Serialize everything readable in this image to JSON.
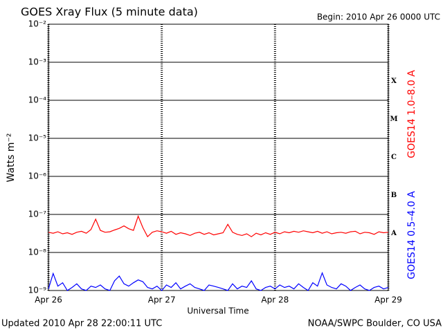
{
  "chart_data": {
    "type": "line",
    "title": "GOES Xray Flux (5 minute data)",
    "subtitle": "Begin:  2010 Apr 26 0000 UTC",
    "x_label": "Universal Time",
    "y_label": "Watts m⁻²",
    "footer_left": "Updated 2010 Apr 28 22:00:11 UTC",
    "footer_right": "NOAA/SWPC Boulder, CO USA",
    "flare_classes": [
      "X",
      "M",
      "C",
      "B",
      "A"
    ],
    "log_scale": true,
    "grid": true,
    "xlim": [
      0,
      72
    ],
    "xticks": [
      {
        "value": 0,
        "label": "Apr 26"
      },
      {
        "value": 24,
        "label": "Apr 27"
      },
      {
        "value": 48,
        "label": "Apr 28"
      },
      {
        "value": 72,
        "label": "Apr 29"
      }
    ],
    "ylim": [
      1e-09,
      0.01
    ],
    "yticks": [
      {
        "value": 1e-09,
        "label": "10⁻⁹"
      },
      {
        "value": 1e-08,
        "label": "10⁻⁸"
      },
      {
        "value": 1e-07,
        "label": "10⁻⁷"
      },
      {
        "value": 1e-06,
        "label": "10⁻⁶"
      },
      {
        "value": 1e-05,
        "label": "10⁻⁵"
      },
      {
        "value": 0.0001,
        "label": "10⁻⁴"
      },
      {
        "value": 0.001,
        "label": "10⁻³"
      },
      {
        "value": 0.01,
        "label": "10⁻²"
      }
    ],
    "x": [
      0,
      1,
      2,
      3,
      4,
      5,
      6,
      7,
      8,
      9,
      10,
      11,
      12,
      13,
      14,
      15,
      16,
      17,
      18,
      19,
      20,
      21,
      22,
      23,
      24,
      25,
      26,
      27,
      28,
      29,
      30,
      31,
      32,
      33,
      34,
      35,
      36,
      37,
      38,
      39,
      40,
      41,
      42,
      43,
      44,
      45,
      46,
      47,
      48,
      49,
      50,
      51,
      52,
      53,
      54,
      55,
      56,
      57,
      58,
      59,
      60,
      61,
      62,
      63,
      64,
      65,
      66,
      67,
      68,
      69,
      70,
      71,
      72
    ],
    "series": [
      {
        "name": "GOES14 1.0–8.0 A",
        "color": "#ff0000",
        "values": [
          3.4e-08,
          3.2e-08,
          3.5e-08,
          3.1e-08,
          3.3e-08,
          3e-08,
          3.4e-08,
          3.6e-08,
          3.2e-08,
          4e-08,
          7.5e-08,
          3.8e-08,
          3.4e-08,
          3.5e-08,
          3.9e-08,
          4.3e-08,
          5e-08,
          4.2e-08,
          3.8e-08,
          9e-08,
          4.5e-08,
          2.6e-08,
          3.4e-08,
          3.7e-08,
          3.5e-08,
          3.2e-08,
          3.6e-08,
          3e-08,
          3.3e-08,
          3.1e-08,
          2.8e-08,
          3.2e-08,
          3.4e-08,
          3e-08,
          3.3e-08,
          2.9e-08,
          3.1e-08,
          3.3e-08,
          5.5e-08,
          3.4e-08,
          3e-08,
          2.8e-08,
          3.1e-08,
          2.6e-08,
          3.2e-08,
          2.9e-08,
          3.3e-08,
          3e-08,
          3.4e-08,
          3.1e-08,
          3.5e-08,
          3.3e-08,
          3.6e-08,
          3.4e-08,
          3.7e-08,
          3.5e-08,
          3.3e-08,
          3.6e-08,
          3.2e-08,
          3.5e-08,
          3.1e-08,
          3.3e-08,
          3.4e-08,
          3.2e-08,
          3.5e-08,
          3.6e-08,
          3.1e-08,
          3.4e-08,
          3.3e-08,
          3e-08,
          3.5e-08,
          3.3e-08,
          3.4e-08
        ]
      },
      {
        "name": "GOES14 0.5–4.0 A",
        "color": "#0000ff",
        "values": [
          1.1e-09,
          2.8e-09,
          1.3e-09,
          1.6e-09,
          1e-09,
          1.2e-09,
          1.5e-09,
          1.1e-09,
          1e-09,
          1.3e-09,
          1.2e-09,
          1.4e-09,
          1.1e-09,
          1e-09,
          1.8e-09,
          2.4e-09,
          1.5e-09,
          1.3e-09,
          1.6e-09,
          1.9e-09,
          1.7e-09,
          1.2e-09,
          1.1e-09,
          1.3e-09,
          1e-09,
          1.4e-09,
          1.2e-09,
          1.6e-09,
          1.1e-09,
          1.3e-09,
          1.5e-09,
          1.2e-09,
          1.1e-09,
          1e-09,
          1.4e-09,
          1.3e-09,
          1.2e-09,
          1.1e-09,
          1e-09,
          1.5e-09,
          1.1e-09,
          1.3e-09,
          1.2e-09,
          1.8e-09,
          1.1e-09,
          1e-09,
          1.2e-09,
          1.3e-09,
          1.1e-09,
          1.4e-09,
          1.2e-09,
          1.3e-09,
          1.1e-09,
          1.5e-09,
          1.2e-09,
          1e-09,
          1.6e-09,
          1.3e-09,
          2.9e-09,
          1.4e-09,
          1.2e-09,
          1.1e-09,
          1.5e-09,
          1.3e-09,
          1e-09,
          1.2e-09,
          1.4e-09,
          1.1e-09,
          1e-09,
          1.2e-09,
          1.3e-09,
          1.1e-09,
          1.2e-09
        ]
      }
    ]
  }
}
